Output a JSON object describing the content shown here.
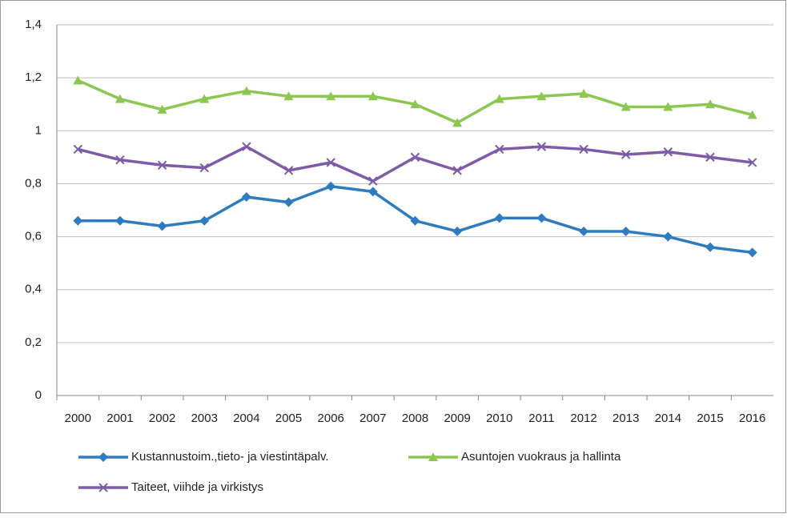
{
  "chart_data": {
    "type": "line",
    "categories": [
      "2000",
      "2001",
      "2002",
      "2003",
      "2004",
      "2005",
      "2006",
      "2007",
      "2008",
      "2009",
      "2010",
      "2011",
      "2012",
      "2013",
      "2014",
      "2015",
      "2016"
    ],
    "series": [
      {
        "name": "Kustannustoim.,tieto- ja viestintäpalv.",
        "color": "#2e7bc0",
        "marker": "diamond",
        "values": [
          0.66,
          0.66,
          0.64,
          0.66,
          0.75,
          0.73,
          0.79,
          0.77,
          0.66,
          0.62,
          0.67,
          0.67,
          0.62,
          0.62,
          0.6,
          0.56,
          0.54
        ]
      },
      {
        "name": "Asuntojen vuokraus ja hallinta",
        "color": "#8cc751",
        "marker": "triangle",
        "values": [
          1.19,
          1.12,
          1.08,
          1.12,
          1.15,
          1.13,
          1.13,
          1.13,
          1.1,
          1.03,
          1.12,
          1.13,
          1.14,
          1.09,
          1.09,
          1.1,
          1.06
        ]
      },
      {
        "name": "Taiteet, viihde ja virkistys",
        "color": "#7d5ba6",
        "marker": "x",
        "values": [
          0.93,
          0.89,
          0.87,
          0.86,
          0.94,
          0.85,
          0.88,
          0.81,
          0.9,
          0.85,
          0.93,
          0.94,
          0.93,
          0.91,
          0.92,
          0.9,
          0.88
        ]
      }
    ],
    "ylim": [
      0,
      1.4
    ],
    "yticks": [
      0,
      {
        "value": 0.2,
        "label": "0,2"
      },
      {
        "value": 0.4,
        "label": "0,4"
      },
      {
        "value": 0.6,
        "label": "0,6"
      },
      {
        "value": 0.8,
        "label": "0,8"
      },
      1,
      {
        "value": 1.2,
        "label": "1,2"
      },
      {
        "value": 1.4,
        "label": "1,4"
      }
    ],
    "grid": true
  }
}
